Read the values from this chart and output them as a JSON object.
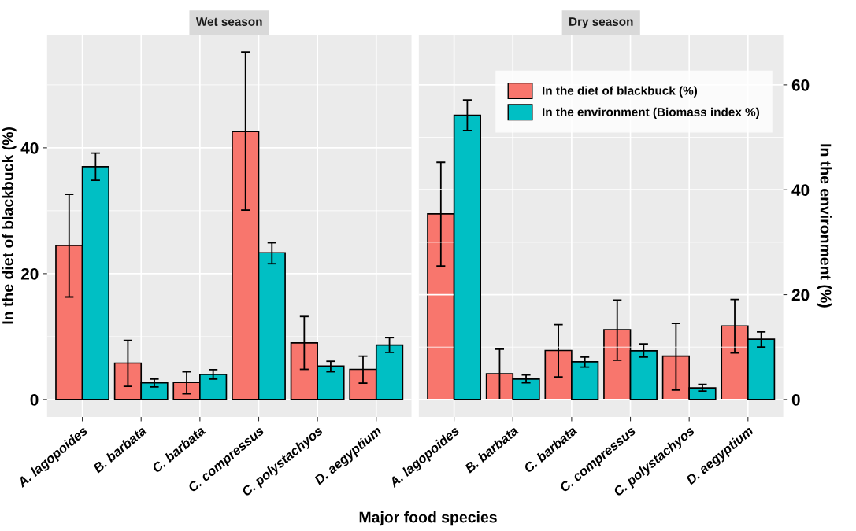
{
  "chart_data": [
    {
      "type": "bar",
      "title": "Wet season",
      "xlabel": "Major food species",
      "ylabel": "In the diet of blackbuck (%)",
      "categories": [
        "A. lagopoides",
        "B. barbata",
        "C. barbata",
        "C. compressus",
        "C. polystachyos",
        "D. aegyptium"
      ],
      "series": [
        {
          "color": "#f8766d",
          "values": [
            24.5,
            5.8,
            2.7,
            42.6,
            9.0,
            4.8
          ],
          "errors": [
            [
              16.3,
              32.6
            ],
            [
              2.1,
              9.4
            ],
            [
              0.9,
              4.4
            ],
            [
              30.1,
              55.2
            ],
            [
              4.8,
              13.2
            ],
            [
              2.6,
              6.9
            ]
          ]
        },
        {
          "color": "#00bfc4",
          "axis": "y2",
          "values": [
            44.4,
            3.2,
            4.8,
            28.0,
            6.4,
            10.4
          ],
          "errors": [
            [
              41.8,
              47.0
            ],
            [
              2.4,
              3.9
            ],
            [
              3.9,
              5.7
            ],
            [
              25.9,
              29.9
            ],
            [
              5.3,
              7.3
            ],
            [
              9.0,
              11.8
            ]
          ]
        }
      ],
      "ylim": [
        -2.75,
        58
      ],
      "yticks": [
        0,
        20,
        40
      ],
      "y2lim": [
        -3.3,
        69.6
      ],
      "grid": true
    },
    {
      "type": "bar",
      "title": "Dry season",
      "y2label": "In the environment (%)",
      "categories": [
        "A. lagopoides",
        "B. barbata",
        "C. barbata",
        "C. compressus",
        "C. polystachyos",
        "D. aegyptium"
      ],
      "series": [
        {
          "name": "In the diet of blackbuck (%)",
          "color": "#f8766d",
          "values": [
            29.5,
            4.1,
            7.8,
            11.1,
            6.9,
            11.7
          ],
          "errors": [
            [
              21.2,
              37.7
            ],
            [
              0,
              8.0
            ],
            [
              3.6,
              11.9
            ],
            [
              6.25,
              15.8
            ],
            [
              1.5,
              12.1
            ],
            [
              7.4,
              15.9
            ]
          ]
        },
        {
          "name": "In the environment (Biomass index %)",
          "color": "#00bfc4",
          "axis": "y2",
          "values": [
            54.2,
            3.9,
            7.2,
            9.3,
            2.2,
            11.5
          ],
          "errors": [
            [
              51.3,
              57.1
            ],
            [
              3.2,
              4.7
            ],
            [
              6.2,
              8.1
            ],
            [
              8.1,
              10.6
            ],
            [
              1.6,
              2.9
            ],
            [
              10.0,
              12.9
            ]
          ]
        }
      ],
      "ylim": [
        -2.75,
        58
      ],
      "y2lim": [
        -3.3,
        69.6
      ],
      "y2ticks": [
        0,
        20,
        40,
        60
      ],
      "grid": true,
      "legend": "top right"
    }
  ]
}
